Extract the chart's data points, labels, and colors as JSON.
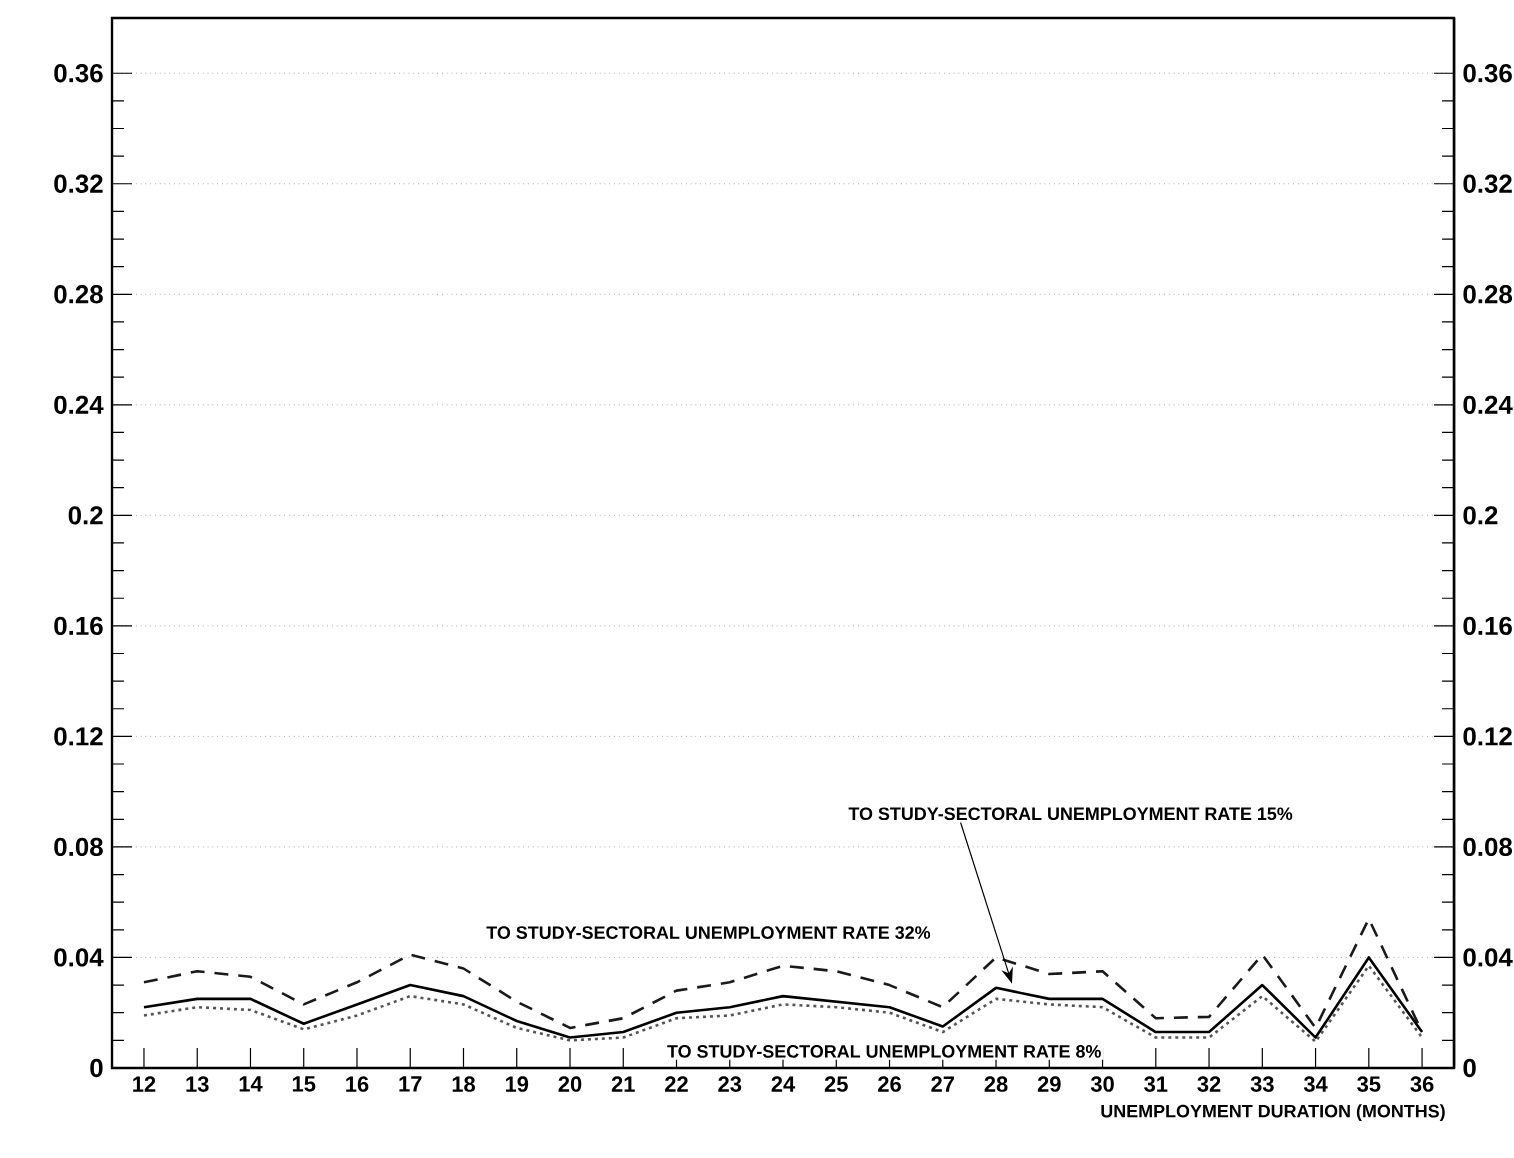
{
  "chart_data": {
    "type": "line",
    "xlabel": "UNEMPLOYMENT DURATION (MONTHS)",
    "x": [
      12,
      13,
      14,
      15,
      16,
      17,
      18,
      19,
      20,
      21,
      22,
      23,
      24,
      25,
      26,
      27,
      28,
      29,
      30,
      31,
      32,
      33,
      34,
      35,
      36
    ],
    "xlim": [
      11.4,
      36.6
    ],
    "xticks": [
      12,
      13,
      14,
      15,
      16,
      17,
      18,
      19,
      20,
      21,
      22,
      23,
      24,
      25,
      26,
      27,
      28,
      29,
      30,
      31,
      32,
      33,
      34,
      35,
      36
    ],
    "ylim": [
      0,
      0.38
    ],
    "yticks": [
      0,
      0.04,
      0.08,
      0.12,
      0.16,
      0.2,
      0.24,
      0.28,
      0.32,
      0.36
    ],
    "y2lim": [
      0,
      0.38
    ],
    "y2ticks": [
      0,
      0.04,
      0.08,
      0.12,
      0.16,
      0.2,
      0.24,
      0.28,
      0.32,
      0.36
    ],
    "grid": "y",
    "marker": "none",
    "legend": false,
    "series": [
      {
        "name": "TO STUDY-SECTORAL UNEMPLOYMENT RATE 32%",
        "color": "#1a1a1a",
        "line_style": "dashed",
        "values": [
          0.031,
          0.035,
          0.033,
          0.023,
          0.031,
          0.041,
          0.036,
          0.024,
          0.0145,
          0.018,
          0.028,
          0.031,
          0.037,
          0.035,
          0.03,
          0.022,
          0.04,
          0.034,
          0.035,
          0.018,
          0.0185,
          0.041,
          0.0145,
          0.054,
          0.013
        ]
      },
      {
        "name": "TO STUDY-SECTORAL UNEMPLOYMENT RATE 15%",
        "color": "#000000",
        "line_style": "solid",
        "values": [
          0.022,
          0.025,
          0.025,
          0.016,
          0.023,
          0.03,
          0.026,
          0.017,
          0.011,
          0.013,
          0.02,
          0.022,
          0.026,
          0.024,
          0.022,
          0.015,
          0.029,
          0.025,
          0.025,
          0.013,
          0.013,
          0.03,
          0.011,
          0.04,
          0.013
        ]
      },
      {
        "name": "TO STUDY-SECTORAL UNEMPLOYMENT RATE 8%",
        "color": "#555555",
        "line_style": "dotted",
        "values": [
          0.019,
          0.022,
          0.021,
          0.014,
          0.019,
          0.026,
          0.023,
          0.0145,
          0.01,
          0.011,
          0.018,
          0.019,
          0.023,
          0.022,
          0.02,
          0.013,
          0.025,
          0.023,
          0.022,
          0.011,
          0.011,
          0.026,
          0.0095,
          0.037,
          0.011
        ]
      }
    ]
  }
}
